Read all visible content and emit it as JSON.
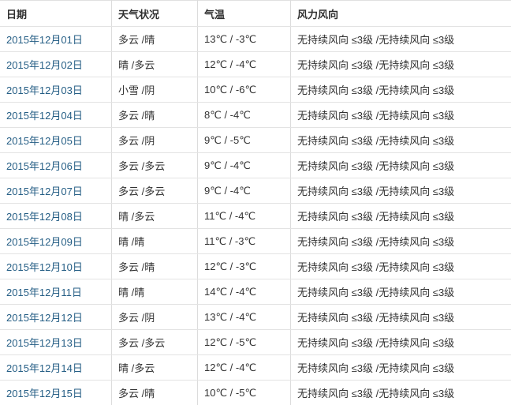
{
  "colors": {
    "link_blue": "#255e85",
    "border_gray": "#dcdcdc",
    "row_divider": "#e3e3e3",
    "header_text": "#2f2f2f",
    "body_text": "#333333"
  },
  "table": {
    "headers": [
      "日期",
      "天气状况",
      "气温",
      "风力风向"
    ],
    "rows": [
      {
        "date": "2015年12月01日",
        "weather": "多云 /晴",
        "temp": "13℃ / -3℃",
        "wind": "无持续风向 ≤3级 /无持续风向 ≤3级"
      },
      {
        "date": "2015年12月02日",
        "weather": "晴 /多云",
        "temp": "12℃ / -4℃",
        "wind": "无持续风向 ≤3级 /无持续风向 ≤3级"
      },
      {
        "date": "2015年12月03日",
        "weather": "小雪 /阴",
        "temp": "10℃ / -6℃",
        "wind": "无持续风向 ≤3级 /无持续风向 ≤3级"
      },
      {
        "date": "2015年12月04日",
        "weather": "多云 /晴",
        "temp": "8℃ / -4℃",
        "wind": "无持续风向 ≤3级 /无持续风向 ≤3级"
      },
      {
        "date": "2015年12月05日",
        "weather": "多云 /阴",
        "temp": "9℃ / -5℃",
        "wind": "无持续风向 ≤3级 /无持续风向 ≤3级"
      },
      {
        "date": "2015年12月06日",
        "weather": "多云 /多云",
        "temp": "9℃ / -4℃",
        "wind": "无持续风向 ≤3级 /无持续风向 ≤3级"
      },
      {
        "date": "2015年12月07日",
        "weather": "多云 /多云",
        "temp": "9℃ / -4℃",
        "wind": "无持续风向 ≤3级 /无持续风向 ≤3级"
      },
      {
        "date": "2015年12月08日",
        "weather": "晴 /多云",
        "temp": "11℃ / -4℃",
        "wind": "无持续风向 ≤3级 /无持续风向 ≤3级"
      },
      {
        "date": "2015年12月09日",
        "weather": "晴 /晴",
        "temp": "11℃ / -3℃",
        "wind": "无持续风向 ≤3级 /无持续风向 ≤3级"
      },
      {
        "date": "2015年12月10日",
        "weather": "多云 /晴",
        "temp": "12℃ / -3℃",
        "wind": "无持续风向 ≤3级 /无持续风向 ≤3级"
      },
      {
        "date": "2015年12月11日",
        "weather": "晴 /晴",
        "temp": "14℃ / -4℃",
        "wind": "无持续风向 ≤3级 /无持续风向 ≤3级"
      },
      {
        "date": "2015年12月12日",
        "weather": "多云 /阴",
        "temp": "13℃ / -4℃",
        "wind": "无持续风向 ≤3级 /无持续风向 ≤3级"
      },
      {
        "date": "2015年12月13日",
        "weather": "多云 /多云",
        "temp": "12℃ / -5℃",
        "wind": "无持续风向 ≤3级 /无持续风向 ≤3级"
      },
      {
        "date": "2015年12月14日",
        "weather": "晴 /多云",
        "temp": "12℃ / -4℃",
        "wind": "无持续风向 ≤3级 /无持续风向 ≤3级"
      },
      {
        "date": "2015年12月15日",
        "weather": "多云 /晴",
        "temp": "10℃ / -5℃",
        "wind": "无持续风向 ≤3级 /无持续风向 ≤3级"
      }
    ]
  }
}
